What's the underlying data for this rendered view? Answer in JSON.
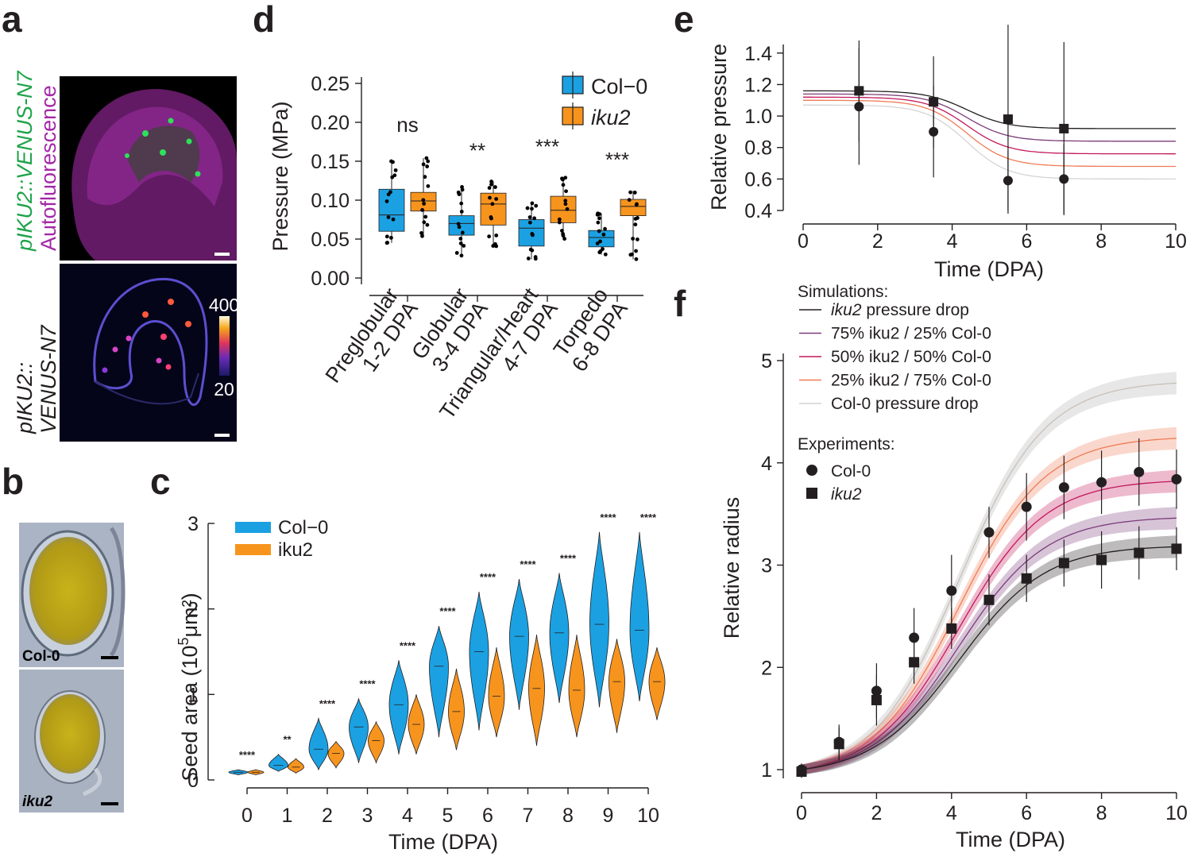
{
  "panel_labels": {
    "a": "a",
    "b": "b",
    "c": "c",
    "d": "d",
    "e": "e",
    "f": "f"
  },
  "panel_a": {
    "top_label_line1": "pIKU2::VENUS-N7",
    "top_label_line2": "Autofluorescence",
    "bottom_label_line1": "pIKU2::",
    "bottom_label_line2": "VENUS-N7",
    "colorbar_max": "400",
    "colorbar_min": "20",
    "colors": {
      "venus": "#22c55e",
      "autofluor": "#c026d3"
    }
  },
  "panel_b": {
    "top_label": "Col-0",
    "bottom_label": "iku2"
  },
  "chart_data": [
    {
      "id": "c",
      "type": "violin",
      "xlabel": "Time (DPA)",
      "ylabel_prefix": "Seed area (10",
      "ylabel_sup": "5",
      "ylabel_suffix": "μm²)",
      "ylim": [
        0,
        3
      ],
      "yticks": [
        "0",
        "1",
        "2",
        "3"
      ],
      "categories": [
        "0",
        "1",
        "2",
        "3",
        "4",
        "5",
        "6",
        "7",
        "8",
        "9",
        "10"
      ],
      "series": [
        {
          "name": "Col−0",
          "color": "#1ba1e2",
          "medians": [
            0.09,
            0.17,
            0.36,
            0.62,
            0.88,
            1.33,
            1.5,
            1.68,
            1.72,
            1.82,
            1.75
          ],
          "min": [
            0.06,
            0.1,
            0.12,
            0.2,
            0.3,
            0.5,
            0.58,
            0.82,
            0.9,
            0.85,
            0.92
          ],
          "max": [
            0.12,
            0.3,
            0.72,
            0.95,
            1.4,
            1.8,
            2.2,
            2.35,
            2.42,
            2.9,
            2.9
          ]
        },
        {
          "name": "iku2",
          "color": "#f7941d",
          "medians": [
            0.09,
            0.15,
            0.31,
            0.46,
            0.65,
            0.8,
            0.98,
            1.07,
            1.05,
            1.15,
            1.15
          ],
          "min": [
            0.06,
            0.08,
            0.14,
            0.2,
            0.3,
            0.35,
            0.5,
            0.4,
            0.5,
            0.55,
            0.7
          ],
          "max": [
            0.12,
            0.25,
            0.45,
            0.68,
            1.0,
            1.3,
            1.55,
            1.7,
            1.7,
            1.65,
            1.55
          ]
        }
      ],
      "significance": [
        "****",
        "**",
        "****",
        "****",
        "****",
        "****",
        "****",
        "****",
        "****",
        "****",
        "****"
      ]
    },
    {
      "id": "d",
      "type": "box",
      "ylabel": "Pressure (MPa)",
      "ylim": [
        0,
        0.25
      ],
      "yticks": [
        "0.00",
        "0.05",
        "0.10",
        "0.15",
        "0.20",
        "0.25"
      ],
      "categories": [
        {
          "line1": "Preglobular",
          "line2": "1-2 DPA"
        },
        {
          "line1": "Globular",
          "line2": "3-4 DPA"
        },
        {
          "line1": "Triangular/Heart",
          "line2": "4-7 DPA"
        },
        {
          "line1": "Torpedo",
          "line2": "6-8 DPA"
        }
      ],
      "series": [
        {
          "name": "Col−0",
          "color": "#1ba1e2",
          "q1": [
            0.06,
            0.055,
            0.041,
            0.04
          ],
          "median": [
            0.081,
            0.07,
            0.064,
            0.052
          ],
          "q3": [
            0.114,
            0.08,
            0.075,
            0.061
          ],
          "whisker_low": [
            0.045,
            0.028,
            0.024,
            0.03
          ],
          "whisker_high": [
            0.152,
            0.117,
            0.096,
            0.083
          ]
        },
        {
          "name": "iku2",
          "color": "#f7941d",
          "q1": [
            0.086,
            0.068,
            0.071,
            0.08
          ],
          "median": [
            0.099,
            0.095,
            0.087,
            0.092
          ],
          "q3": [
            0.11,
            0.109,
            0.105,
            0.101
          ],
          "whisker_low": [
            0.053,
            0.04,
            0.05,
            0.024
          ],
          "whisker_high": [
            0.154,
            0.124,
            0.129,
            0.112
          ]
        }
      ],
      "significance": [
        "ns",
        "**",
        "***",
        "***"
      ]
    },
    {
      "id": "e",
      "type": "line",
      "xlabel": "Time (DPA)",
      "ylabel": "Relative pressure",
      "xlim": [
        0,
        10
      ],
      "ylim": [
        0.4,
        1.5
      ],
      "xticks": [
        "0",
        "2",
        "4",
        "6",
        "8",
        "10"
      ],
      "yticks": [
        "0.4",
        "0.6",
        "0.8",
        "1.0",
        "1.2",
        "1.4"
      ],
      "lines": [
        {
          "color": "#231f20",
          "plateau_start": 1.16,
          "plateau_end": 0.92
        },
        {
          "color": "#7b3c7a",
          "plateau_start": 1.14,
          "plateau_end": 0.84
        },
        {
          "color": "#c2185b",
          "plateau_start": 1.12,
          "plateau_end": 0.76
        },
        {
          "color": "#ef7b56",
          "plateau_start": 1.1,
          "plateau_end": 0.68
        },
        {
          "color": "#d4d4d4",
          "plateau_start": 1.07,
          "plateau_end": 0.6
        }
      ],
      "experiments_col0": {
        "x": [
          1.5,
          3.5,
          5.5,
          7.0
        ],
        "y": [
          1.06,
          0.9,
          0.59,
          0.6
        ],
        "err": [
          0.37,
          0.29,
          0.19,
          0.22
        ]
      },
      "experiments_iku2": {
        "x": [
          1.5,
          3.5,
          5.5,
          7.0
        ],
        "y": [
          1.16,
          1.09,
          0.98,
          0.92
        ],
        "err": [
          0.32,
          0.29,
          0.6,
          0.55
        ]
      }
    },
    {
      "id": "f",
      "type": "line",
      "xlabel": "Time (DPA)",
      "ylabel": "Relative radius",
      "xlim": [
        0,
        10
      ],
      "ylim": [
        0.85,
        5.2
      ],
      "xticks": [
        "0",
        "2",
        "4",
        "6",
        "8",
        "10"
      ],
      "yticks": [
        "1",
        "2",
        "3",
        "4",
        "5"
      ],
      "simulations_title": "Simulations:",
      "simulations": [
        {
          "name_italic": "iku2",
          "name_rest": " pressure drop",
          "color": "#231f20",
          "end": 3.18
        },
        {
          "name_italic": "",
          "name_rest": "75% iku2 / 25% Col-0",
          "color": "#7b3c7a",
          "end": 3.46
        },
        {
          "name_italic": "",
          "name_rest": "50% iku2 / 50% Col-0",
          "color": "#c2185b",
          "end": 3.82
        },
        {
          "name_italic": "",
          "name_rest": "25% iku2 / 75% Col-0",
          "color": "#ef7b56",
          "end": 4.24
        },
        {
          "name_italic": "",
          "name_rest": "Col-0 pressure drop",
          "color": "#d4d4d4",
          "end": 4.78
        }
      ],
      "experiments_title": "Experiments:",
      "experiments": [
        {
          "name": "Col-0",
          "marker": "circle",
          "x": [
            0,
            1,
            2,
            3,
            4,
            5,
            6,
            7,
            8,
            9,
            10
          ],
          "y": [
            1.0,
            1.27,
            1.77,
            2.29,
            2.75,
            3.32,
            3.57,
            3.76,
            3.81,
            3.91,
            3.84
          ],
          "err": [
            0.06,
            0.17,
            0.27,
            0.29,
            0.35,
            0.25,
            0.33,
            0.31,
            0.31,
            0.33,
            0.29
          ]
        },
        {
          "name": "iku2",
          "marker": "square",
          "x": [
            0,
            1,
            2,
            3,
            4,
            5,
            6,
            7,
            8,
            9,
            10
          ],
          "y": [
            0.98,
            1.25,
            1.68,
            2.05,
            2.38,
            2.66,
            2.87,
            3.02,
            3.05,
            3.12,
            3.16
          ],
          "err": [
            0.06,
            0.16,
            0.25,
            0.21,
            0.2,
            0.25,
            0.23,
            0.23,
            0.28,
            0.26,
            0.21
          ]
        }
      ]
    }
  ]
}
